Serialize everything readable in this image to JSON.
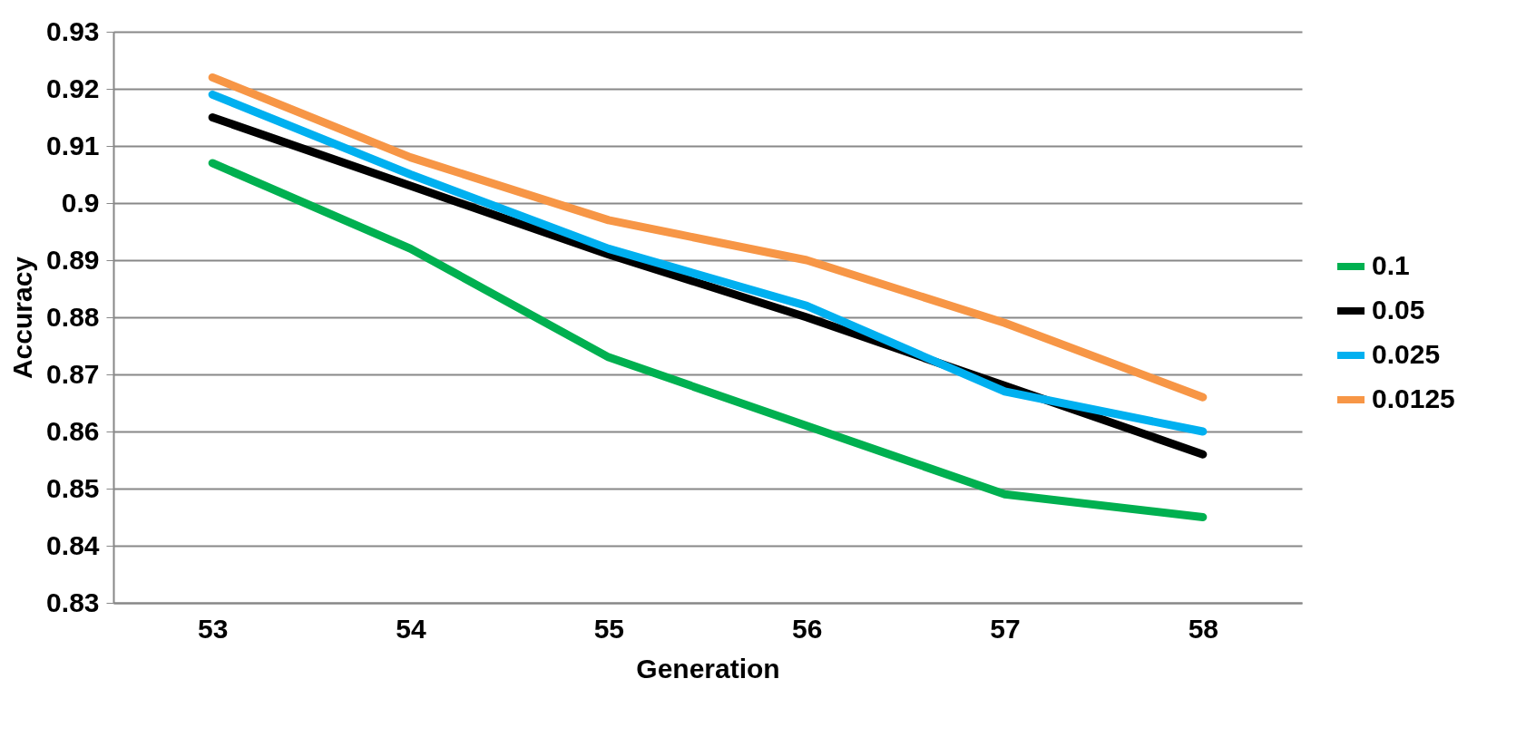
{
  "chart_data": {
    "type": "line",
    "xlabel": "Generation",
    "ylabel": "Accuracy",
    "categories": [
      "53",
      "54",
      "55",
      "56",
      "57",
      "58"
    ],
    "series": [
      {
        "name": "0.1",
        "color": "#00b050",
        "values": [
          0.907,
          0.892,
          0.873,
          0.861,
          0.849,
          0.845
        ]
      },
      {
        "name": "0.05",
        "color": "#000000",
        "values": [
          0.915,
          0.903,
          0.891,
          0.88,
          0.868,
          0.856
        ]
      },
      {
        "name": "0.025",
        "color": "#00b0f0",
        "values": [
          0.919,
          0.905,
          0.892,
          0.882,
          0.867,
          0.86
        ]
      },
      {
        "name": "0.0125",
        "color": "#f79646",
        "values": [
          0.922,
          0.908,
          0.897,
          0.89,
          0.879,
          0.866
        ]
      }
    ],
    "ylim": [
      0.83,
      0.93
    ],
    "yticks": [
      0.83,
      0.84,
      0.85,
      0.86,
      0.87,
      0.88,
      0.89,
      0.9,
      0.91,
      0.92,
      0.93
    ],
    "grid": "y",
    "legend": "right",
    "marker": "none",
    "line_style": "solid"
  }
}
